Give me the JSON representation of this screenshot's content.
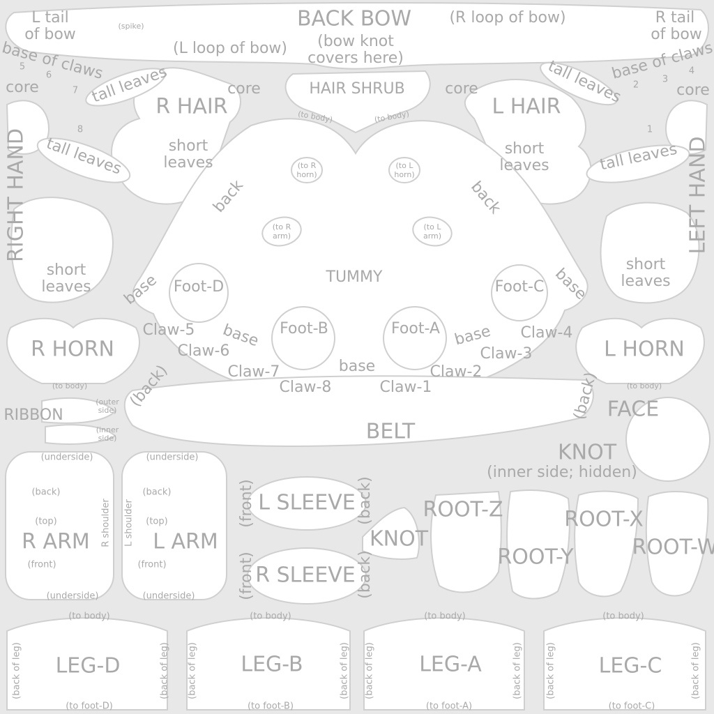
{
  "labels": {
    "l_tail_of_bow": [
      "L tail",
      "of bow"
    ],
    "spike": "(spike)",
    "back_bow": "BACK BOW",
    "bow_knot_covers": [
      "(bow knot",
      "covers here)"
    ],
    "r_loop_of_bow": "(R loop of bow)",
    "r_tail_of_bow": [
      "R tail",
      "of bow"
    ],
    "l_loop_of_bow": "(L loop of bow)",
    "base_of_claws": "base of claws",
    "core": "core",
    "tall_leaves": "tall leaves",
    "short_leaves": [
      "short",
      "leaves"
    ],
    "r_hair": "R HAIR",
    "l_hair": "L HAIR",
    "hair_shrub": "HAIR SHRUB",
    "to_body": "(to body)",
    "right_hand": "RIGHT HAND",
    "left_hand": "LEFT HAND",
    "to_r_horn": [
      "(to R",
      "horn)"
    ],
    "to_l_horn": [
      "(to L",
      "horn)"
    ],
    "to_r_arm": [
      "(to R",
      "arm)"
    ],
    "to_l_arm": [
      "(to L",
      "arm)"
    ],
    "back": "back",
    "base": "base",
    "tummy": "TUMMY",
    "foot_d": "Foot-D",
    "foot_c": "Foot-C",
    "foot_b": "Foot-B",
    "foot_a": "Foot-A",
    "claw_1": "Claw-1",
    "claw_2": "Claw-2",
    "claw_3": "Claw-3",
    "claw_4": "Claw-4",
    "claw_5": "Claw-5",
    "claw_6": "Claw-6",
    "claw_7": "Claw-7",
    "claw_8": "Claw-8",
    "r_horn": "R HORN",
    "l_horn": "L HORN",
    "back_paren": "(back)",
    "front_paren": "(front)",
    "face": "FACE",
    "ribbon": "RIBBON",
    "outer_side": [
      "(outer",
      "side)"
    ],
    "inner_side": [
      "(inner",
      "side)"
    ],
    "belt": "BELT",
    "knot": "KNOT",
    "knot_inner": "(inner side; hidden)",
    "underside": "(underside)",
    "top": "(top)",
    "r_shoulder": "R shoulder",
    "l_shoulder": "L shoulder",
    "r_arm": "R ARM",
    "l_arm": "L ARM",
    "l_sleeve": "L SLEEVE",
    "r_sleeve": "R SLEEVE",
    "root_z": "ROOT-Z",
    "root_y": "ROOT-Y",
    "root_x": "ROOT-X",
    "root_w": "ROOT-W",
    "leg_d": "LEG-D",
    "leg_b": "LEG-B",
    "leg_a": "LEG-A",
    "leg_c": "LEG-C",
    "back_of_leg": "(back of leg)",
    "to_foot_d": "(to foot-D)",
    "to_foot_b": "(to foot-B)",
    "to_foot_a": "(to foot-A)",
    "to_foot_c": "(to foot-C)",
    "n1": "1",
    "n2": "2",
    "n3": "3",
    "n4": "4",
    "n5": "5",
    "n6": "6",
    "n7": "7",
    "n8": "8"
  }
}
